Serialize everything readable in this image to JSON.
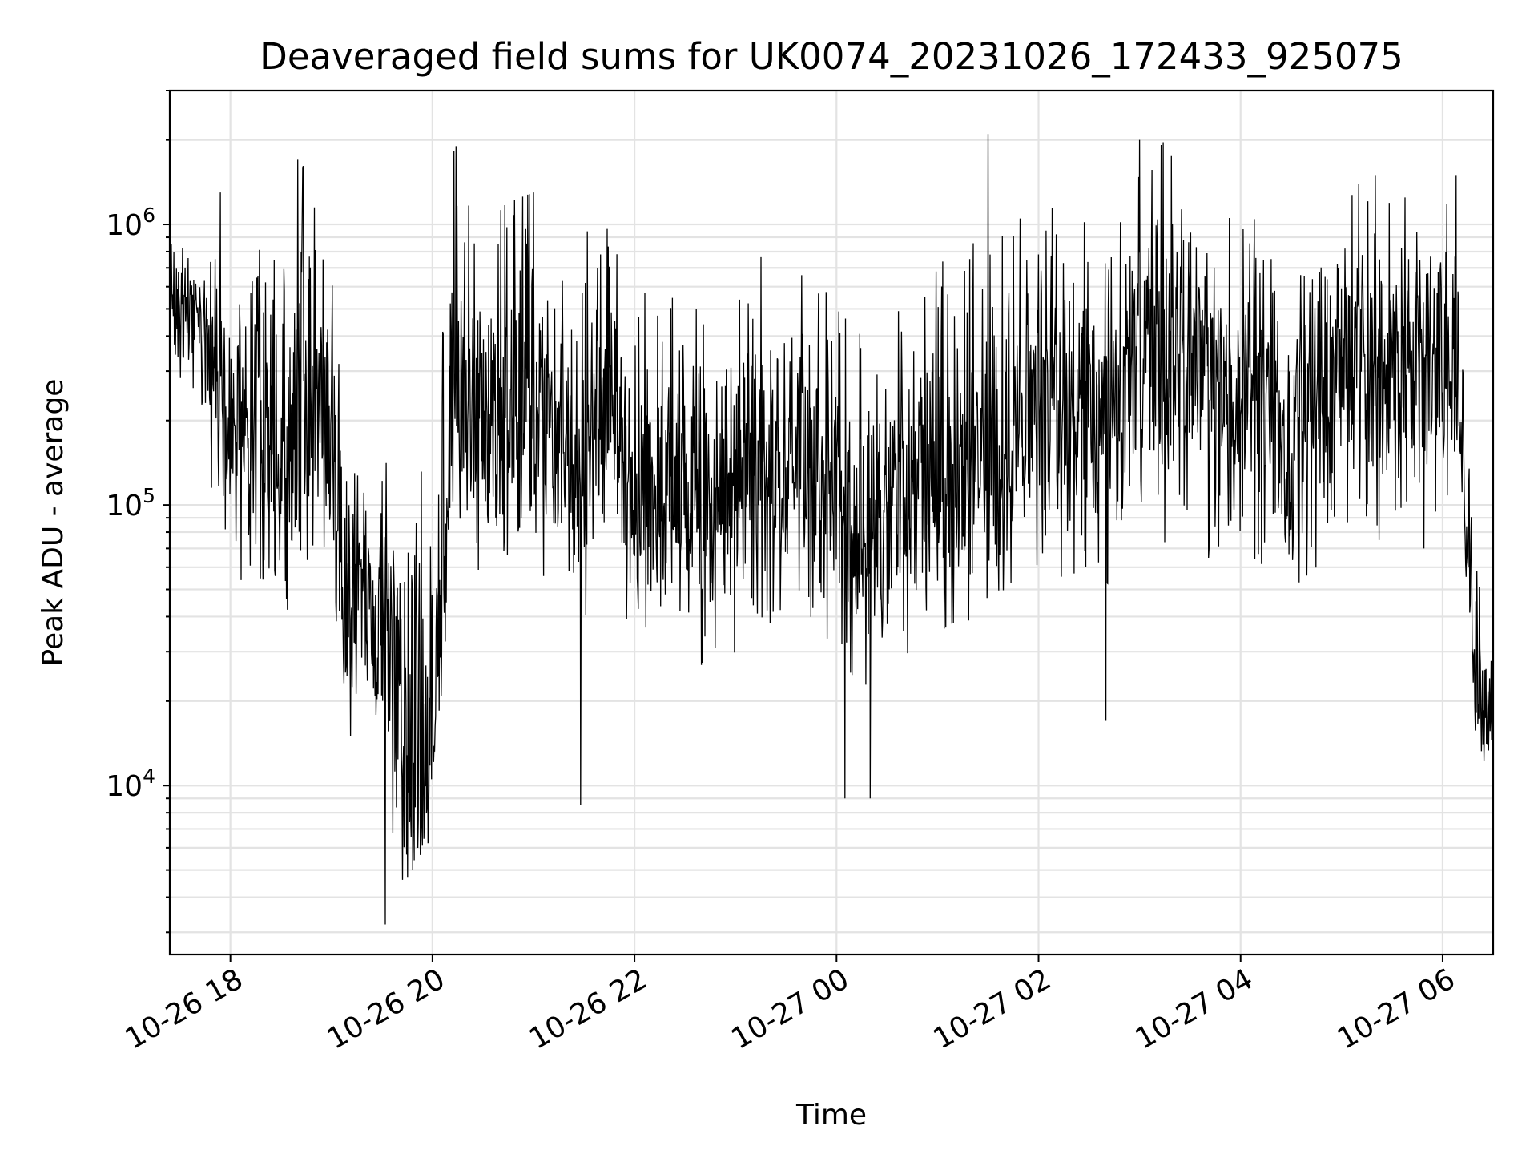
{
  "chart_data": {
    "type": "line",
    "title": "Deaveraged field sums for UK0074_20231026_172433_925075",
    "xlabel": "Time",
    "ylabel": "Peak ADU - average",
    "yscale": "log",
    "ylim": [
      2500,
      3000000
    ],
    "xlim": [
      "2023-10-26 17:24",
      "2023-10-27 06:30"
    ],
    "grid": true,
    "line_color": "#000000",
    "x_ticks": [
      {
        "time": "2023-10-26 18:00",
        "label": "10-26 18"
      },
      {
        "time": "2023-10-26 20:00",
        "label": "10-26 20"
      },
      {
        "time": "2023-10-26 22:00",
        "label": "10-26 22"
      },
      {
        "time": "2023-10-27 00:00",
        "label": "10-27 00"
      },
      {
        "time": "2023-10-27 02:00",
        "label": "10-27 02"
      },
      {
        "time": "2023-10-27 04:00",
        "label": "10-27 04"
      },
      {
        "time": "2023-10-27 06:00",
        "label": "10-27 06"
      }
    ],
    "y_ticks": [
      {
        "value": 10000,
        "base": "10",
        "exp": "4"
      },
      {
        "value": 100000,
        "base": "10",
        "exp": "5"
      },
      {
        "value": 1000000,
        "base": "10",
        "exp": "6"
      }
    ],
    "series": [
      {
        "color": "#000000",
        "x": [
          "2023-10-26 17:24",
          "2023-10-26 17:32",
          "2023-10-26 17:40",
          "2023-10-26 17:48",
          "2023-10-26 17:56",
          "2023-10-26 18:04",
          "2023-10-26 18:12",
          "2023-10-26 18:20",
          "2023-10-26 18:28",
          "2023-10-26 18:36",
          "2023-10-26 18:44",
          "2023-10-26 18:52",
          "2023-10-26 19:00",
          "2023-10-26 19:08",
          "2023-10-26 19:16",
          "2023-10-26 19:24",
          "2023-10-26 19:32",
          "2023-10-26 19:40",
          "2023-10-26 19:48",
          "2023-10-26 19:56",
          "2023-10-26 20:04",
          "2023-10-26 20:12",
          "2023-10-26 20:20",
          "2023-10-26 20:30",
          "2023-10-26 20:45",
          "2023-10-26 21:00",
          "2023-10-26 21:15",
          "2023-10-26 21:30",
          "2023-10-26 21:45",
          "2023-10-26 22:00",
          "2023-10-26 22:15",
          "2023-10-26 22:30",
          "2023-10-26 22:45",
          "2023-10-26 23:00",
          "2023-10-26 23:15",
          "2023-10-26 23:30",
          "2023-10-26 23:45",
          "2023-10-27 00:00",
          "2023-10-27 00:15",
          "2023-10-27 00:30",
          "2023-10-27 00:45",
          "2023-10-27 01:00",
          "2023-10-27 01:15",
          "2023-10-27 01:30",
          "2023-10-27 01:45",
          "2023-10-27 02:00",
          "2023-10-27 02:15",
          "2023-10-27 02:30",
          "2023-10-27 02:45",
          "2023-10-27 03:00",
          "2023-10-27 03:15",
          "2023-10-27 03:30",
          "2023-10-27 03:45",
          "2023-10-27 04:00",
          "2023-10-27 04:15",
          "2023-10-27 04:30",
          "2023-10-27 04:45",
          "2023-10-27 05:00",
          "2023-10-27 05:15",
          "2023-10-27 05:30",
          "2023-10-27 05:45",
          "2023-10-27 06:00",
          "2023-10-27 06:10",
          "2023-10-27 06:20",
          "2023-10-27 06:30"
        ],
        "y": [
          700000,
          500000,
          500000,
          400000,
          250000,
          200000,
          200000,
          150000,
          150000,
          150000,
          200000,
          250000,
          150000,
          40000,
          50000,
          35000,
          50000,
          15000,
          10000,
          8000,
          30000,
          200000,
          250000,
          200000,
          200000,
          250000,
          180000,
          150000,
          200000,
          120000,
          100000,
          100000,
          80000,
          110000,
          150000,
          120000,
          150000,
          100000,
          80000,
          100000,
          110000,
          130000,
          150000,
          130000,
          150000,
          200000,
          220000,
          250000,
          200000,
          400000,
          300000,
          350000,
          250000,
          300000,
          250000,
          200000,
          250000,
          300000,
          350000,
          300000,
          300000,
          300000,
          200000,
          20000,
          15000
        ],
        "y_low": [
          400000,
          250000,
          200000,
          120000,
          80000,
          60000,
          40000,
          50000,
          35000,
          40000,
          60000,
          80000,
          50000,
          15000,
          15000,
          15000,
          10000,
          4000,
          4000,
          5000,
          10000,
          60000,
          70000,
          55000,
          55000,
          60000,
          50000,
          40000,
          50000,
          35000,
          28000,
          30000,
          25000,
          30000,
          40000,
          35000,
          40000,
          30000,
          22000,
          28000,
          30000,
          35000,
          40000,
          35000,
          40000,
          55000,
          55000,
          60000,
          50000,
          90000,
          70000,
          80000,
          60000,
          70000,
          60000,
          50000,
          60000,
          70000,
          80000,
          70000,
          70000,
          70000,
          150000,
          12000,
          11000
        ],
        "y_high": [
          1000000,
          850000,
          850000,
          900000,
          700000,
          550000,
          700000,
          900000,
          700000,
          1000000,
          1700000,
          1000000,
          800000,
          150000,
          150000,
          120000,
          150000,
          60000,
          100000,
          150000,
          300000,
          1900000,
          1200000,
          1000000,
          1200000,
          1300000,
          700000,
          900000,
          1300000,
          700000,
          500000,
          600000,
          400000,
          500000,
          800000,
          600000,
          700000,
          500000,
          400000,
          500000,
          600000,
          700000,
          900000,
          800000,
          1000000,
          1200000,
          1100000,
          1000000,
          900000,
          1500000,
          2000000,
          1200000,
          1000000,
          1100000,
          1000000,
          800000,
          900000,
          1200000,
          1500000,
          1300000,
          1200000,
          1300000,
          900000,
          60000,
          25000
        ],
        "spikes": [
          {
            "time": "2023-10-26 17:54",
            "value": 1300000
          },
          {
            "time": "2023-10-26 18:40",
            "value": 1700000
          },
          {
            "time": "2023-10-26 19:32",
            "value": 3200
          },
          {
            "time": "2023-10-26 20:14",
            "value": 1900000
          },
          {
            "time": "2023-10-26 21:00",
            "value": 1300000
          },
          {
            "time": "2023-10-26 21:28",
            "value": 8500
          },
          {
            "time": "2023-10-27 00:05",
            "value": 9000
          },
          {
            "time": "2023-10-27 00:20",
            "value": 9000
          },
          {
            "time": "2023-10-27 01:30",
            "value": 2100000
          },
          {
            "time": "2023-10-27 02:40",
            "value": 17000
          },
          {
            "time": "2023-10-27 03:00",
            "value": 2000000
          },
          {
            "time": "2023-10-27 05:20",
            "value": 1500000
          },
          {
            "time": "2023-10-27 06:08",
            "value": 1500000
          }
        ]
      }
    ]
  }
}
